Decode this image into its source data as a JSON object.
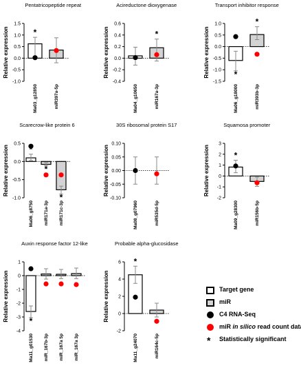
{
  "legend": {
    "target_gene": "Target gene",
    "mir": "miR",
    "c4": "C4 RNA-Seq",
    "insilico_prefix": "miR ",
    "insilico_italic": "in silico",
    "insilico_suffix": " read count data",
    "stat": "Statistically significant",
    "star_symbol": "*"
  },
  "colors": {
    "target_fill": "#ffffff",
    "mir_fill": "#d3d3d3",
    "c4_dot": "#000000",
    "insilico_dot": "#ff0000",
    "error_bar": "#888888"
  },
  "chart_data": [
    {
      "type": "bar",
      "title": "Pentatricopeptide repeat",
      "ylabel": "Relative expression",
      "ylim": [
        -1,
        1.5
      ],
      "yticks": [
        -1,
        -0.5,
        0,
        0.5,
        1,
        1.5
      ],
      "ytick_labels": [
        "-1.0",
        "-0.5",
        "0.0",
        "0.5",
        "1.0",
        "1.5"
      ],
      "categories": [
        "Ma03_g12850",
        "miR397a-5p"
      ],
      "kinds": [
        "target",
        "mir"
      ],
      "values": [
        0.62,
        0.35
      ],
      "errors": [
        [
          0.0,
          0.9
        ],
        [
          -0.2,
          0.88
        ]
      ],
      "c4": [
        0.02,
        null
      ],
      "insilico": [
        null,
        0.33
      ],
      "significant": [
        true,
        false
      ]
    },
    {
      "type": "bar",
      "title": "Acireductone dioxygenase",
      "ylabel": "Relative expression",
      "ylim": [
        -0.4,
        0.6
      ],
      "yticks": [
        -0.4,
        -0.2,
        0,
        0.2,
        0.4,
        0.6
      ],
      "ytick_labels": [
        "-0.4",
        "-0.2",
        "0.0",
        "0.2",
        "0.4",
        "0.6"
      ],
      "categories": [
        "Ma04_g10650",
        "miR167a-3p"
      ],
      "kinds": [
        "target",
        "mir"
      ],
      "values": [
        0.04,
        0.18
      ],
      "errors": [
        [
          -0.12,
          0.19
        ],
        [
          -0.05,
          0.33
        ]
      ],
      "c4": [
        0.01,
        null
      ],
      "insilico": [
        null,
        0.06
      ],
      "significant": [
        false,
        true
      ]
    },
    {
      "type": "bar",
      "title": "Transport inhibitor response",
      "ylabel": "Relative expression",
      "ylim": [
        -1.5,
        1.0
      ],
      "yticks": [
        -1.5,
        -1.0,
        -0.5,
        0,
        0.5,
        1.0
      ],
      "ytick_labels": [
        "-1.5",
        "-1.0",
        "-0.5",
        "0.0",
        "0.5",
        "1.0"
      ],
      "categories": [
        "Ma06_g18000",
        "miR393b-3p"
      ],
      "kinds": [
        "target",
        "mir"
      ],
      "values": [
        -0.6,
        0.52
      ],
      "errors": [
        [
          -1.05,
          -0.2
        ],
        [
          0.3,
          0.86
        ]
      ],
      "c4": [
        0.43,
        null
      ],
      "insilico": [
        null,
        -0.33
      ],
      "significant": [
        true,
        true
      ]
    },
    {
      "type": "bar",
      "title": "Scarecrow-like protein 6",
      "ylabel": "Relative expression",
      "ylim": [
        -1.0,
        0.5
      ],
      "yticks": [
        -1.0,
        -0.5,
        0,
        0.5
      ],
      "ytick_labels": [
        "-1.0",
        "-0.5",
        "0.0",
        "0.5"
      ],
      "categories": [
        "Ma06_g8750",
        "miR171a-3p",
        "miR171c-3p"
      ],
      "kinds": [
        "target",
        "mir",
        "mir"
      ],
      "values": [
        0.1,
        -0.08,
        -0.78
      ],
      "errors": [
        [
          0.03,
          0.2
        ],
        [
          -0.12,
          -0.03
        ],
        [
          -0.9,
          -0.68
        ]
      ],
      "c4": [
        0.42,
        null,
        null
      ],
      "insilico": [
        null,
        -0.37,
        -0.37
      ],
      "significant": [
        true,
        true,
        true
      ]
    },
    {
      "type": "bar",
      "title": "30S ribosomal protein S17",
      "ylabel": "Relative expression",
      "ylim": [
        -0.1,
        0.1
      ],
      "yticks": [
        -0.1,
        -0.05,
        0,
        0.05,
        0.1
      ],
      "ytick_labels": [
        "-0.10",
        "-0.05",
        "0.00",
        "0.05",
        "0.10"
      ],
      "categories": [
        "Ma08_g07960",
        "miR535d-5p"
      ],
      "kinds": [
        "target",
        "mir"
      ],
      "values": [
        0.0,
        0.0
      ],
      "errors": [
        [
          -0.05,
          0.05
        ],
        [
          -0.05,
          0.05
        ]
      ],
      "c4": [
        0.0,
        null
      ],
      "insilico": [
        null,
        -0.012
      ],
      "significant": [
        false,
        false
      ]
    },
    {
      "type": "bar",
      "title": "Squamosa promoter",
      "ylabel": "Relative expression",
      "ylim": [
        -2,
        3
      ],
      "yticks": [
        -2,
        -1,
        0,
        1,
        2,
        3
      ],
      "ytick_labels": [
        "-2",
        "-1",
        "0",
        "1",
        "2",
        "3"
      ],
      "categories": [
        "Ma09_g28300",
        "miR156b-5p"
      ],
      "kinds": [
        "target",
        "mir"
      ],
      "values": [
        0.82,
        -0.5
      ],
      "errors": [
        [
          0.3,
          1.45
        ],
        [
          -0.95,
          -0.1
        ]
      ],
      "c4": [
        0.92,
        null
      ],
      "insilico": [
        null,
        -0.62
      ],
      "significant": [
        true,
        false
      ]
    },
    {
      "type": "bar",
      "title": "Auxin response factor 12-like",
      "ylabel": "Relative expression",
      "ylim": [
        -4,
        1
      ],
      "yticks": [
        -4,
        -3,
        -2,
        -1,
        0,
        1
      ],
      "ytick_labels": [
        "-4",
        "-3",
        "-2",
        "-1",
        "0",
        "1"
      ],
      "categories": [
        "Ma11_g01530",
        "miR_167b-3p",
        "miR_167a 5p",
        "miR_167a 3p"
      ],
      "kinds": [
        "target",
        "mir",
        "mir",
        "mir"
      ],
      "values": [
        -2.6,
        0.12,
        0.1,
        0.15
      ],
      "errors": [
        [
          -3.05,
          -2.2
        ],
        [
          -0.25,
          0.5
        ],
        [
          -0.22,
          0.45
        ],
        [
          -0.22,
          0.55
        ]
      ],
      "c4": [
        0.5,
        null,
        null,
        null
      ],
      "insilico": [
        null,
        -0.6,
        -0.6,
        -0.65
      ],
      "significant": [
        true,
        false,
        false,
        false
      ]
    },
    {
      "type": "bar",
      "title": "Probable alpha-glucosidase",
      "ylabel": "Relative expression",
      "ylim": [
        -2,
        6
      ],
      "yticks": [
        -2,
        0,
        2,
        4,
        6
      ],
      "ytick_labels": [
        "-2",
        "0",
        "2",
        "4",
        "6"
      ],
      "categories": [
        "Ma11_g24070",
        "miR164c-5p"
      ],
      "kinds": [
        "target",
        "mir"
      ],
      "values": [
        4.5,
        0.4
      ],
      "errors": [
        [
          3.5,
          5.5
        ],
        [
          -0.4,
          1.2
        ]
      ],
      "c4": [
        1.9,
        null
      ],
      "insilico": [
        null,
        -0.9
      ],
      "significant": [
        true,
        false
      ]
    }
  ]
}
